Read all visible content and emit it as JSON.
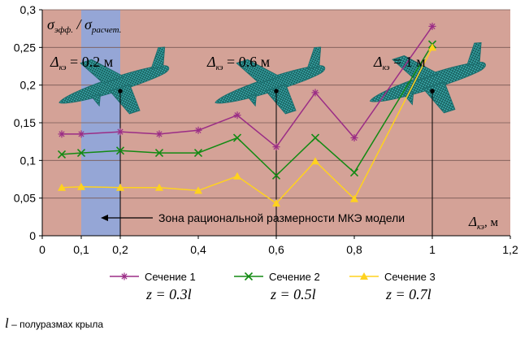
{
  "chart_data": {
    "type": "line",
    "ylabel_num": "σ",
    "ylabel_num_sub": "эфф.",
    "ylabel_den": "σ",
    "ylabel_den_sub": "расчет.",
    "xlabel": "Δ",
    "xlabel_sub": "кэ",
    "xlabel_unit": ", м",
    "xlim": [
      0,
      1.2
    ],
    "ylim": [
      0,
      0.3
    ],
    "xticks": [
      "0",
      "0,1",
      "0,2",
      "0,4",
      "0,6",
      "0,8",
      "1",
      "1,2"
    ],
    "xtick_values": [
      0,
      0.1,
      0.2,
      0.4,
      0.6,
      0.8,
      1.0,
      1.2
    ],
    "yticks": [
      "0",
      "0,05",
      "0,1",
      "0,15",
      "0,2",
      "0,25",
      "0,3"
    ],
    "ytick_values": [
      0,
      0.05,
      0.1,
      0.15,
      0.2,
      0.25,
      0.3
    ],
    "grid": "horizontal",
    "legend_position": "bottom",
    "x": [
      0.05,
      0.1,
      0.2,
      0.3,
      0.4,
      0.5,
      0.6,
      0.7,
      0.8,
      1.0
    ],
    "series": [
      {
        "name": "Сечение 1",
        "marker": "star",
        "color": "#9b2d86",
        "values": [
          0.135,
          0.135,
          0.138,
          0.135,
          0.14,
          0.16,
          0.118,
          0.19,
          0.13,
          0.278
        ],
        "z_label": "z = 0.3l"
      },
      {
        "name": "Сечение 2",
        "marker": "x",
        "color": "#138a13",
        "values": [
          0.108,
          0.11,
          0.113,
          0.11,
          0.11,
          0.13,
          0.08,
          0.13,
          0.084,
          0.254
        ],
        "z_label": "z = 0.5l"
      },
      {
        "name": "Сечение 3",
        "marker": "triangle",
        "color": "#ffd21e",
        "values": [
          0.064,
          0.065,
          0.064,
          0.064,
          0.06,
          0.079,
          0.043,
          0.099,
          0.049,
          0.25
        ],
        "z_label": "z = 0.7l"
      }
    ],
    "band": {
      "x_from": 0.1,
      "x_to": 0.2,
      "color": "#95a6d6"
    },
    "markers_vertical": [
      {
        "x": 0.2,
        "y": 0.192,
        "label": "Δ",
        "label_sub": "кэ",
        "label_rest": " = 0.2 м"
      },
      {
        "x": 0.6,
        "y": 0.192,
        "label": "Δ",
        "label_sub": "кэ",
        "label_rest": " = 0.6 м"
      },
      {
        "x": 1.0,
        "y": 0.192,
        "label": "Δ",
        "label_sub": "кэ",
        "label_rest": " = 1 м"
      }
    ],
    "annotation": "Зона рациональной размерности МКЭ модели",
    "colors": {
      "plot_bg": "#d4a297",
      "grid": "#7a5a55",
      "drop_line": "#000000"
    }
  },
  "footnote": {
    "var": "l",
    "text": " – полуразмах крыла"
  }
}
